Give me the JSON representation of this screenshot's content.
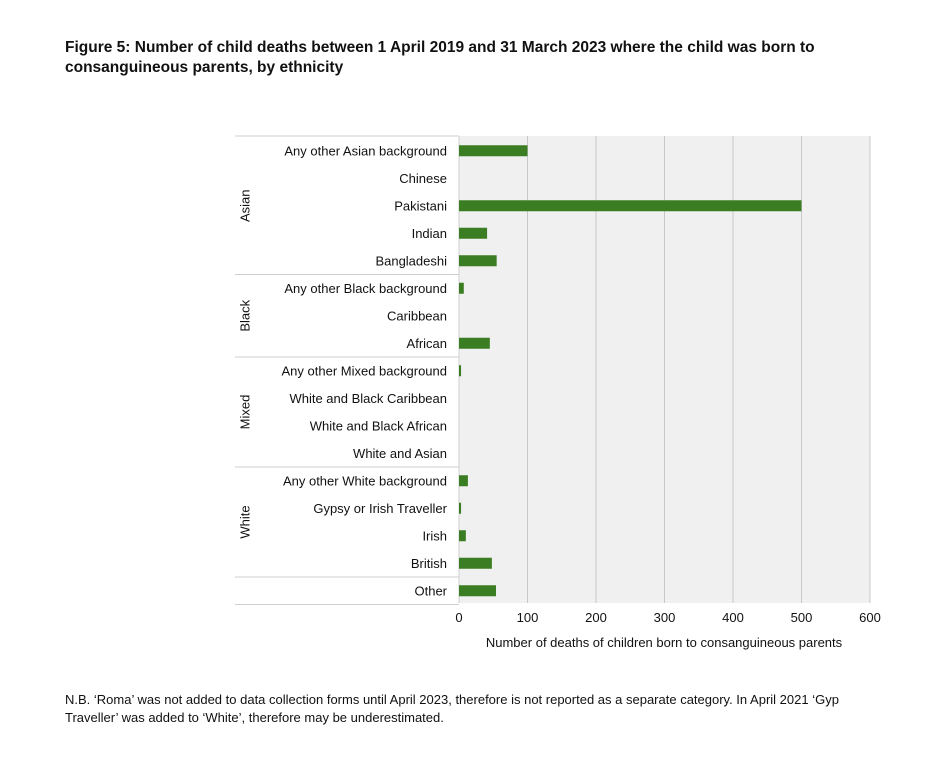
{
  "figure": {
    "title": "Figure 5: Number of child deaths between 1 April 2019 and 31 March 2023 where the child was born to consanguineous parents, by ethnicity",
    "note_line1": "N.B. ‘Roma’ was not added to data collection forms until April 2023, therefore is not reported as a separate category. In April 2021 ‘Gyp",
    "note_line2": "Traveller’ was added to ‘White’, therefore may be underestimated."
  },
  "chart_data": {
    "type": "bar",
    "orientation": "horizontal",
    "xlabel": "Number of deaths of children born to consanguineous parents",
    "xlim": [
      0,
      600
    ],
    "xticks": [
      0,
      100,
      200,
      300,
      400,
      500,
      600
    ],
    "grid": true,
    "bar_color": "#3b7d23",
    "groups": [
      {
        "name": "Asian",
        "categories": [
          {
            "label": "Any other Asian background",
            "value": 100
          },
          {
            "label": "Chinese",
            "value": 0
          },
          {
            "label": "Pakistani",
            "value": 500
          },
          {
            "label": "Indian",
            "value": 41
          },
          {
            "label": "Bangladeshi",
            "value": 55
          }
        ]
      },
      {
        "name": "Black",
        "categories": [
          {
            "label": "Any other Black background",
            "value": 7
          },
          {
            "label": "Caribbean",
            "value": 0
          },
          {
            "label": "African",
            "value": 45
          }
        ]
      },
      {
        "name": "Mixed",
        "categories": [
          {
            "label": "Any other Mixed background",
            "value": 3
          },
          {
            "label": "White and Black Caribbean",
            "value": 0
          },
          {
            "label": "White and Black African",
            "value": 0
          },
          {
            "label": "White and Asian",
            "value": 0
          }
        ]
      },
      {
        "name": "White",
        "categories": [
          {
            "label": "Any other White background",
            "value": 13
          },
          {
            "label": "Gypsy or Irish Traveller",
            "value": 3
          },
          {
            "label": "Irish",
            "value": 10
          },
          {
            "label": "British",
            "value": 48
          }
        ]
      },
      {
        "name": "",
        "categories": [
          {
            "label": "Other",
            "value": 54
          }
        ]
      }
    ]
  }
}
